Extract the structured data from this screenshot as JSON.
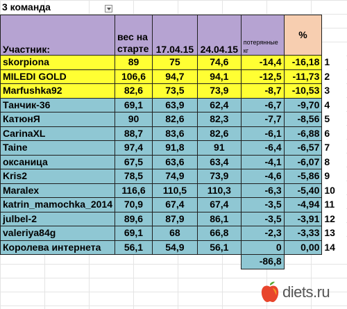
{
  "sheet": {
    "title": "3 команда",
    "headers": {
      "name": "Участник:",
      "start": "вес на старте",
      "d1": "17.04.15",
      "d2": "24.04.15",
      "lost": "потерянные кг",
      "pct": "%"
    },
    "rows": [
      {
        "name": "skorpiona",
        "start": "89",
        "d1": "75",
        "d2": "74,6",
        "lost": "-14,4",
        "pct": "-16,18",
        "rank": "1",
        "color": "yellow"
      },
      {
        "name": "MILEDI GOLD",
        "start": "106,6",
        "d1": "94,7",
        "d2": "94,1",
        "lost": "-12,5",
        "pct": "-11,73",
        "rank": "2",
        "color": "yellow"
      },
      {
        "name": "Marfushka92",
        "start": "82,6",
        "d1": "73,5",
        "d2": "73,9",
        "lost": "-8,7",
        "pct": "-10,53",
        "rank": "3",
        "color": "yellow"
      },
      {
        "name": "Танчик-36",
        "start": "69,1",
        "d1": "63,9",
        "d2": "62,4",
        "lost": "-6,7",
        "pct": "-9,70",
        "rank": "4",
        "color": "blue"
      },
      {
        "name": "КатюнЯ",
        "start": "90",
        "d1": "82,6",
        "d2": "82,3",
        "lost": "-7,7",
        "pct": "-8,56",
        "rank": "5",
        "color": "blue"
      },
      {
        "name": "CarinaXL",
        "start": "88,7",
        "d1": "83,6",
        "d2": "82,6",
        "lost": "-6,1",
        "pct": "-6,88",
        "rank": "6",
        "color": "blue"
      },
      {
        "name": "Taine",
        "start": "97,4",
        "d1": "91,8",
        "d2": "91",
        "lost": "-6,4",
        "pct": "-6,57",
        "rank": "7",
        "color": "blue"
      },
      {
        "name": "оксаница",
        "start": "67,5",
        "d1": "63,6",
        "d2": "63,4",
        "lost": "-4,1",
        "pct": "-6,07",
        "rank": "8",
        "color": "blue"
      },
      {
        "name": "Kris2",
        "start": "78,5",
        "d1": "74,9",
        "d2": "73,9",
        "lost": "-4,6",
        "pct": "-5,86",
        "rank": "9",
        "color": "blue"
      },
      {
        "name": "Maralex",
        "start": "116,6",
        "d1": "110,5",
        "d2": "110,3",
        "lost": "-6,3",
        "pct": "-5,40",
        "rank": "10",
        "color": "blue"
      },
      {
        "name": "katrin_mamochka_2014",
        "start": "70,9",
        "d1": "67,4",
        "d2": "67,4",
        "lost": "-3,5",
        "pct": "-4,94",
        "rank": "11",
        "color": "blue"
      },
      {
        "name": "julbel-2",
        "start": "89,6",
        "d1": "87,9",
        "d2": "86,1",
        "lost": "-3,5",
        "pct": "-3,91",
        "rank": "12",
        "color": "blue"
      },
      {
        "name": "valeriya84g",
        "start": "69,1",
        "d1": "68",
        "d2": "66,8",
        "lost": "-2,3",
        "pct": "-3,33",
        "rank": "13",
        "color": "blue"
      },
      {
        "name": "Королева интернета",
        "start": "56,1",
        "d1": "54,9",
        "d2": "56,1",
        "lost": "0",
        "pct": "0,00",
        "rank": "14",
        "color": "blue"
      }
    ],
    "total_lost": "-86,8"
  },
  "watermark": {
    "text": "diets.ru",
    "icon": "apple-icon",
    "colors": {
      "apple_red": "#e8452c",
      "apple_orange": "#f59a23",
      "leaf": "#5aa832"
    }
  },
  "colors": {
    "header": "#b6a3d2",
    "pct_header": "#f7ceb0",
    "top3": "#ffff33",
    "others": "#8fc7d3",
    "pct_text": "#e00000",
    "rank_text": "#1a73c9"
  }
}
